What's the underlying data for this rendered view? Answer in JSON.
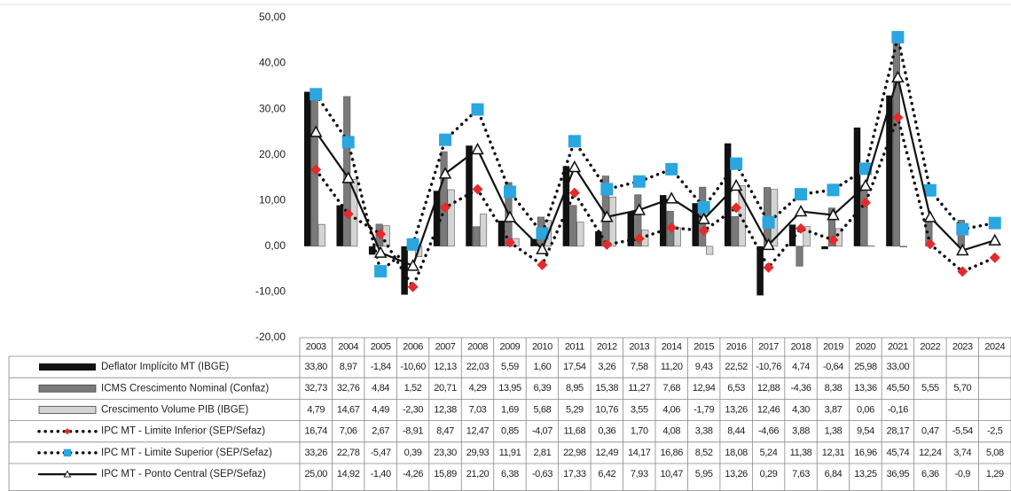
{
  "chart_data": {
    "type": "bar",
    "categories": [
      "2003",
      "2004",
      "2005",
      "2006",
      "2007",
      "2008",
      "2009",
      "2010",
      "2011",
      "2012",
      "2013",
      "2014",
      "2015",
      "2016",
      "2017",
      "2018",
      "2019",
      "2020",
      "2021",
      "2022",
      "2023",
      "2024"
    ],
    "ylim": [
      -20,
      50
    ],
    "yticks": [
      {
        "value": -20,
        "label": "-20,00"
      },
      {
        "value": -10,
        "label": "-10,00"
      },
      {
        "value": 0,
        "label": "0,00"
      },
      {
        "value": 10,
        "label": "10,00"
      },
      {
        "value": 20,
        "label": "20,00"
      },
      {
        "value": 30,
        "label": "30,00"
      },
      {
        "value": 40,
        "label": "40,00"
      },
      {
        "value": 50,
        "label": "50,00"
      }
    ],
    "series": [
      {
        "name": "Deflator Implícito MT (IBGE)",
        "type": "bar",
        "color": "#111111",
        "values": [
          33.8,
          8.97,
          -1.84,
          -10.6,
          12.13,
          22.03,
          5.59,
          1.6,
          17.54,
          3.26,
          7.58,
          11.2,
          9.43,
          22.52,
          -10.76,
          4.74,
          -0.64,
          25.98,
          33.0,
          null,
          null,
          null
        ],
        "value_labels": [
          "33,80",
          "8,97",
          "-1,84",
          "-10,60",
          "12,13",
          "22,03",
          "5,59",
          "1,60",
          "17,54",
          "3,26",
          "7,58",
          "11,20",
          "9,43",
          "22,52",
          "-10,76",
          "4,74",
          "-0,64",
          "25,98",
          "33,00",
          null,
          null,
          null
        ]
      },
      {
        "name": "ICMS Crescimento Nominal (Confaz)",
        "type": "bar",
        "color": "#7a7a7a",
        "values": [
          32.73,
          32.76,
          4.84,
          1.52,
          20.71,
          4.29,
          13.95,
          6.39,
          8.95,
          15.38,
          11.27,
          7.68,
          12.94,
          6.53,
          12.88,
          -4.36,
          8.38,
          13.36,
          45.5,
          5.55,
          5.7,
          null
        ],
        "value_labels": [
          "32,73",
          "32,76",
          "4,84",
          "1,52",
          "20,71",
          "4,29",
          "13,95",
          "6,39",
          "8,95",
          "15,38",
          "11,27",
          "7,68",
          "12,94",
          "6,53",
          "12,88",
          "-4,36",
          "8,38",
          "13,36",
          "45,50",
          "5,55",
          "5,70",
          null
        ]
      },
      {
        "name": "Crescimento Volume PIB (IBGE)",
        "type": "bar",
        "color": "#d4d4d4",
        "values": [
          4.79,
          14.67,
          4.49,
          -2.3,
          12.38,
          7.03,
          1.69,
          5.68,
          5.29,
          10.76,
          3.55,
          4.06,
          -1.79,
          13.26,
          12.46,
          4.3,
          3.87,
          0.06,
          -0.16,
          null,
          null,
          null
        ],
        "value_labels": [
          "4,79",
          "14,67",
          "4,49",
          "-2,30",
          "12,38",
          "7,03",
          "1,69",
          "5,68",
          "5,29",
          "10,76",
          "3,55",
          "4,06",
          "-1,79",
          "13,26",
          "12,46",
          "4,30",
          "3,87",
          "0,06",
          "-0,16",
          null,
          null,
          null
        ]
      },
      {
        "name": "IPC MT - Limite Inferior (SEP/Sefaz)",
        "type": "line",
        "color": "#111111",
        "linestyle": "dotted",
        "marker": "diamond",
        "marker_color": "#e32b2b",
        "values": [
          16.74,
          7.06,
          2.67,
          -8.91,
          8.47,
          12.47,
          0.85,
          -4.07,
          11.68,
          0.36,
          1.7,
          4.08,
          3.38,
          8.44,
          -4.66,
          3.88,
          1.38,
          9.54,
          28.17,
          0.47,
          -5.54,
          -2.5
        ],
        "value_labels": [
          "16,74",
          "7,06",
          "2,67",
          "-8,91",
          "8,47",
          "12,47",
          "0,85",
          "-4,07",
          "11,68",
          "0,36",
          "1,70",
          "4,08",
          "3,38",
          "8,44",
          "-4,66",
          "3,88",
          "1,38",
          "9,54",
          "28,17",
          "0,47",
          "-5,54",
          "-2,5"
        ]
      },
      {
        "name": "IPC MT - Limite Superior (SEP/Sefaz)",
        "type": "line",
        "color": "#111111",
        "linestyle": "dotted",
        "marker": "square",
        "marker_color": "#2aa6e0",
        "values": [
          33.26,
          22.78,
          -5.47,
          0.39,
          23.3,
          29.93,
          11.91,
          2.81,
          22.98,
          12.49,
          14.17,
          16.86,
          8.52,
          18.08,
          5.24,
          11.38,
          12.31,
          16.96,
          45.74,
          12.24,
          3.74,
          5.08
        ],
        "value_labels": [
          "33,26",
          "22,78",
          "-5,47",
          "0,39",
          "23,30",
          "29,93",
          "11,91",
          "2,81",
          "22,98",
          "12,49",
          "14,17",
          "16,86",
          "8,52",
          "18,08",
          "5,24",
          "11,38",
          "12,31",
          "16,96",
          "45,74",
          "12,24",
          "3,74",
          "5,08"
        ]
      },
      {
        "name": "IPC MT - Ponto Central (SEP/Sefaz)",
        "type": "line",
        "color": "#111111",
        "linestyle": "solid",
        "marker": "triangle",
        "marker_color": "#ffffff",
        "values": [
          25.0,
          14.92,
          -1.4,
          -4.26,
          15.89,
          21.2,
          6.38,
          -0.63,
          17.33,
          6.42,
          7.93,
          10.47,
          5.95,
          13.26,
          0.29,
          7.63,
          6.84,
          13.25,
          36.95,
          6.36,
          -0.9,
          1.29
        ],
        "value_labels": [
          "25,00",
          "14,92",
          "-1,40",
          "-4,26",
          "15,89",
          "21,20",
          "6,38",
          "-0,63",
          "17,33",
          "6,42",
          "7,93",
          "10,47",
          "5,95",
          "13,26",
          "0,29",
          "7,63",
          "6,84",
          "13,25",
          "36,95",
          "6,36",
          "-0,9",
          "1,29"
        ]
      }
    ]
  }
}
